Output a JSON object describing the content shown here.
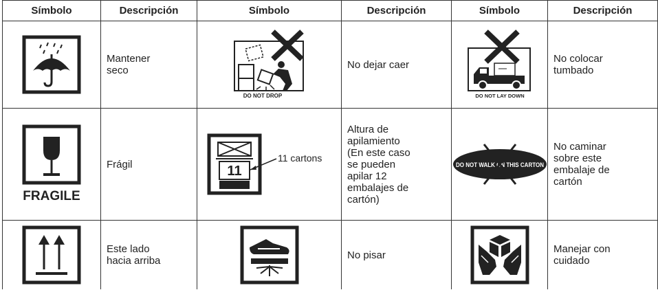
{
  "table": {
    "header": [
      "Símbolo",
      "Descripción",
      "Símbolo",
      "Descripción",
      "Símbolo",
      "Descripción"
    ],
    "rows": [
      [
        {
          "description": "Mantener\nseco"
        },
        {
          "symbol_text": "DO NOT DROP",
          "description": "No dejar caer"
        },
        {
          "symbol_text": "DO NOT LAY DOWN",
          "description": "No colocar\ntumbado"
        }
      ],
      [
        {
          "symbol_text": "FRAGILE",
          "description": "Frágil"
        },
        {
          "symbol_text": "11",
          "callout": "11 cartons",
          "description": "Altura de\napilamiento\n(En este caso\nse pueden\napilar 12\nembalajes de\ncartón)"
        },
        {
          "symbol_text": "DO NOT WALK ON THIS CARTON",
          "description": "No caminar\nsobre este\nembalaje de\ncartón"
        }
      ],
      [
        {
          "description": "Este lado\nhacia arriba"
        },
        {
          "description": "No pisar"
        },
        {
          "description": "Manejar con\ncuidado"
        }
      ]
    ]
  }
}
